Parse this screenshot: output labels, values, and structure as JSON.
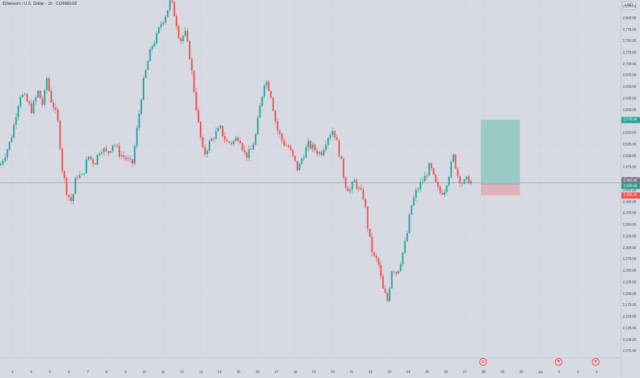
{
  "header": {
    "symbol": "Ethereum / U.S. Dollar · 1h · COINBASE",
    "currency": "USD"
  },
  "colors": {
    "up": "#26a69a",
    "down": "#ef5350",
    "last_price": "#787b86",
    "profit_zone": "#8fc7c0",
    "loss_zone": "#e0a9b2"
  },
  "price_axis": {
    "ticks": [
      "2,825.00",
      "2,800.00",
      "2,775.00",
      "2,750.00",
      "2,725.00",
      "2,700.00",
      "2,675.00",
      "2,650.00",
      "2,625.00",
      "2,600.00",
      "2,575.00",
      "2,550.00",
      "2,525.00",
      "2,500.00",
      "2,475.00",
      "2,450.00",
      "2,425.00",
      "2,400.00",
      "2,375.00",
      "2,350.00",
      "2,325.00",
      "2,300.00",
      "2,275.00",
      "2,250.00",
      "2,225.00",
      "2,200.00",
      "2,175.00",
      "2,150.00",
      "2,125.00",
      "2,100.00",
      "2,075.00"
    ],
    "tags": [
      {
        "label": "2,579.04",
        "kind": "target"
      },
      {
        "label": "2,442.36",
        "kind": "current"
      },
      {
        "label": "2,439.48",
        "kind": "entry"
      },
      {
        "label": "2,415.16",
        "kind": "stop"
      }
    ]
  },
  "time_axis": {
    "labels": [
      "3",
      "4",
      "5",
      "6",
      "7",
      "8",
      "9",
      "10",
      "11",
      "12",
      "13",
      "14",
      "15",
      "16",
      "17",
      "18",
      "19",
      "20",
      "21",
      "22",
      "23",
      "24",
      "25",
      "26",
      "27",
      "28",
      "29",
      "30",
      "Jul",
      "2",
      "3",
      "4"
    ]
  },
  "event_icons": [
    "cpi-event-icon",
    "us-flag-event-icon",
    "us-flag-event-icon"
  ],
  "chart_data": {
    "type": "candlestick",
    "instrument": "Ethereum / U.S. Dollar",
    "interval": "1h",
    "exchange": "COINBASE",
    "x_range": [
      "3",
      "27"
    ],
    "ylim": [
      2062,
      2840
    ],
    "close_path": [
      [
        "3",
        2480
      ],
      [
        "3",
        2525
      ],
      [
        "3",
        2555
      ],
      [
        "3",
        2600
      ],
      [
        "3",
        2635
      ],
      [
        "4",
        2625
      ],
      [
        "4",
        2600
      ],
      [
        "4",
        2640
      ],
      [
        "5",
        2610
      ],
      [
        "5",
        2670
      ],
      [
        "5",
        2625
      ],
      [
        "5",
        2605
      ],
      [
        "5",
        2570
      ],
      [
        "6",
        2470
      ],
      [
        "6",
        2420
      ],
      [
        "6",
        2400
      ],
      [
        "6",
        2460
      ],
      [
        "7",
        2455
      ],
      [
        "7",
        2500
      ],
      [
        "7",
        2485
      ],
      [
        "8",
        2520
      ],
      [
        "8",
        2505
      ],
      [
        "8",
        2530
      ],
      [
        "9",
        2505
      ],
      [
        "9",
        2495
      ],
      [
        "9",
        2480
      ],
      [
        "10",
        2570
      ],
      [
        "10",
        2650
      ],
      [
        "10",
        2700
      ],
      [
        "10",
        2740
      ],
      [
        "11",
        2760
      ],
      [
        "11",
        2790
      ],
      [
        "11",
        2810
      ],
      [
        "11",
        2840
      ],
      [
        "12",
        2800
      ],
      [
        "12",
        2750
      ],
      [
        "12",
        2770
      ],
      [
        "12",
        2720
      ],
      [
        "13",
        2640
      ],
      [
        "13",
        2560
      ],
      [
        "13",
        2500
      ],
      [
        "13",
        2525
      ],
      [
        "14",
        2545
      ],
      [
        "14",
        2560
      ],
      [
        "14",
        2530
      ],
      [
        "15",
        2530
      ],
      [
        "15",
        2545
      ],
      [
        "15",
        2500
      ],
      [
        "16",
        2510
      ],
      [
        "16",
        2545
      ],
      [
        "16",
        2610
      ],
      [
        "16",
        2670
      ],
      [
        "17",
        2640
      ],
      [
        "17",
        2560
      ],
      [
        "17",
        2530
      ],
      [
        "18",
        2520
      ],
      [
        "18",
        2495
      ],
      [
        "18",
        2470
      ],
      [
        "18",
        2500
      ],
      [
        "19",
        2525
      ],
      [
        "19",
        2515
      ],
      [
        "19",
        2505
      ],
      [
        "20",
        2540
      ],
      [
        "20",
        2560
      ],
      [
        "20",
        2505
      ],
      [
        "21",
        2440
      ],
      [
        "21",
        2425
      ],
      [
        "21",
        2445
      ],
      [
        "21",
        2425
      ],
      [
        "22",
        2410
      ],
      [
        "22",
        2330
      ],
      [
        "22",
        2280
      ],
      [
        "22",
        2270
      ],
      [
        "23",
        2210
      ],
      [
        "23",
        2185
      ],
      [
        "23",
        2260
      ],
      [
        "23",
        2245
      ],
      [
        "24",
        2280
      ],
      [
        "24",
        2320
      ],
      [
        "24",
        2390
      ],
      [
        "24",
        2420
      ],
      [
        "25",
        2440
      ],
      [
        "25",
        2455
      ],
      [
        "25",
        2480
      ],
      [
        "25",
        2445
      ],
      [
        "26",
        2420
      ],
      [
        "26",
        2425
      ],
      [
        "26",
        2460
      ],
      [
        "26",
        2500
      ],
      [
        "27",
        2455
      ],
      [
        "27",
        2440
      ],
      [
        "27",
        2450
      ],
      [
        "27",
        2442
      ]
    ],
    "last_price": 2442.36,
    "position": {
      "type": "long",
      "entry": 2439.48,
      "target": 2579.04,
      "stop": 2415.16
    }
  }
}
